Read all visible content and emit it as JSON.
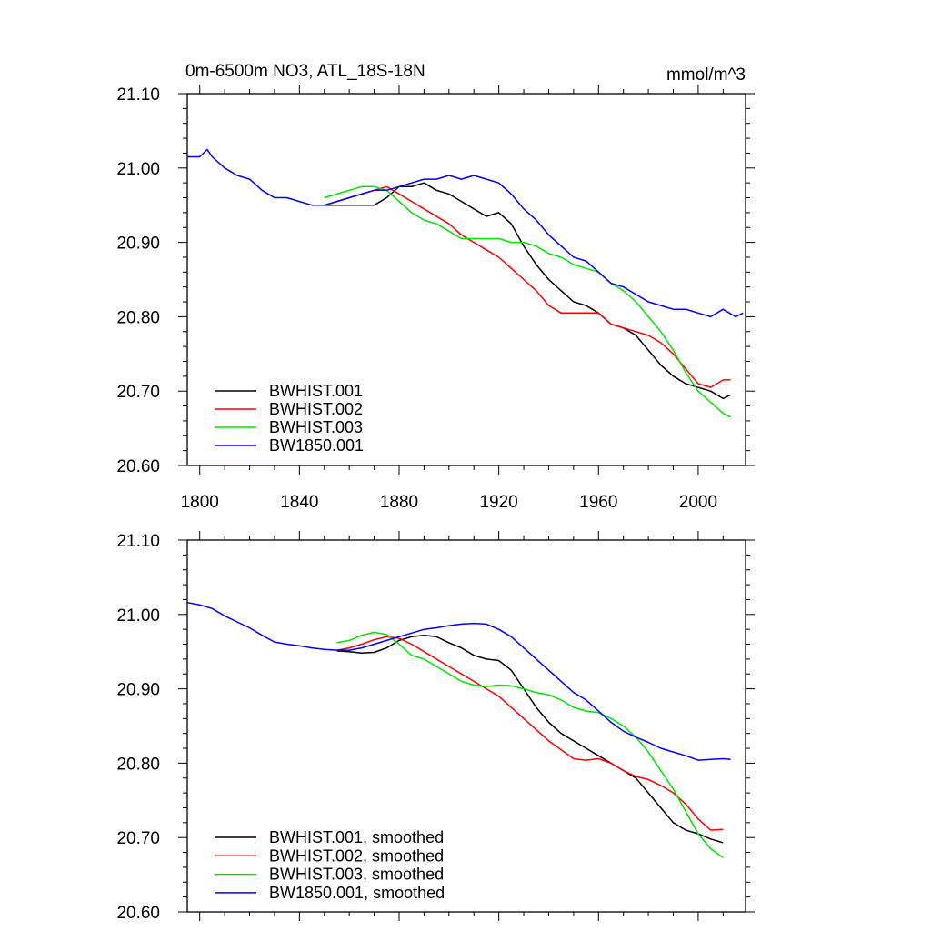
{
  "colors": {
    "BWHIST.001": "#000000",
    "BWHIST.002": "#ff0000",
    "BWHIST.003": "#00e600",
    "BW1850.001": "#0000ff"
  },
  "chart_data": [
    {
      "type": "line",
      "title": "0m-6500m NO3, ATL_18S-18N",
      "units": "mmol/m^3",
      "xlim": [
        1795,
        2019
      ],
      "ylim": [
        20.6,
        21.1
      ],
      "xticks": [
        1800,
        1840,
        1880,
        1920,
        1960,
        2000
      ],
      "xtick_labels": [
        "1800",
        "1840",
        "1880",
        "1920",
        "1960",
        "2000"
      ],
      "yticks": [
        20.6,
        20.7,
        20.8,
        20.9,
        21.0,
        21.1
      ],
      "ytick_labels": [
        "20.60",
        "20.70",
        "20.80",
        "20.90",
        "21.00",
        "21.10"
      ],
      "legend_position": "bottom-left",
      "series": [
        {
          "name": "BWHIST.001",
          "key": "BWHIST.001",
          "x": [
            1850,
            1855,
            1860,
            1865,
            1870,
            1875,
            1880,
            1885,
            1890,
            1895,
            1900,
            1905,
            1910,
            1915,
            1920,
            1925,
            1930,
            1935,
            1940,
            1945,
            1950,
            1955,
            1960,
            1965,
            1970,
            1975,
            1980,
            1985,
            1990,
            1995,
            2000,
            2005,
            2010,
            2013
          ],
          "y": [
            20.95,
            20.95,
            20.95,
            20.95,
            20.95,
            20.96,
            20.975,
            20.975,
            20.98,
            20.97,
            20.965,
            20.955,
            20.945,
            20.935,
            20.94,
            20.925,
            20.895,
            20.87,
            20.85,
            20.835,
            20.82,
            20.815,
            20.805,
            20.79,
            20.785,
            20.775,
            20.755,
            20.735,
            20.72,
            20.71,
            20.705,
            20.7,
            20.69,
            20.695
          ]
        },
        {
          "name": "BWHIST.002",
          "key": "BWHIST.002",
          "x": [
            1850,
            1855,
            1860,
            1865,
            1870,
            1875,
            1880,
            1885,
            1890,
            1895,
            1900,
            1905,
            1910,
            1915,
            1920,
            1925,
            1930,
            1935,
            1940,
            1945,
            1950,
            1955,
            1960,
            1965,
            1970,
            1975,
            1980,
            1985,
            1990,
            1995,
            2000,
            2005,
            2010,
            2013
          ],
          "y": [
            20.95,
            20.955,
            20.96,
            20.965,
            20.97,
            20.975,
            20.965,
            20.955,
            20.945,
            20.935,
            20.925,
            20.91,
            20.9,
            20.89,
            20.88,
            20.865,
            20.85,
            20.835,
            20.815,
            20.805,
            20.805,
            20.805,
            20.805,
            20.79,
            20.785,
            20.78,
            20.775,
            20.765,
            20.75,
            20.73,
            20.71,
            20.705,
            20.715,
            20.715
          ]
        },
        {
          "name": "BWHIST.003",
          "key": "BWHIST.003",
          "x": [
            1850,
            1855,
            1860,
            1865,
            1870,
            1875,
            1880,
            1885,
            1890,
            1895,
            1900,
            1905,
            1910,
            1915,
            1920,
            1925,
            1930,
            1935,
            1940,
            1945,
            1950,
            1955,
            1960,
            1965,
            1970,
            1975,
            1980,
            1985,
            1990,
            1995,
            2000,
            2005,
            2010,
            2013
          ],
          "y": [
            20.96,
            20.965,
            20.97,
            20.975,
            20.975,
            20.97,
            20.955,
            20.94,
            20.93,
            20.925,
            20.915,
            20.905,
            20.905,
            20.905,
            20.905,
            20.9,
            20.9,
            20.895,
            20.885,
            20.88,
            20.87,
            20.865,
            20.86,
            20.845,
            20.835,
            20.82,
            20.8,
            20.78,
            20.755,
            20.725,
            20.7,
            20.685,
            20.67,
            20.665
          ]
        },
        {
          "name": "BW1850.001",
          "key": "BW1850.001",
          "x": [
            1795,
            1800,
            1803,
            1805,
            1810,
            1815,
            1820,
            1825,
            1830,
            1835,
            1840,
            1845,
            1850,
            1855,
            1860,
            1865,
            1870,
            1875,
            1880,
            1885,
            1890,
            1895,
            1900,
            1905,
            1910,
            1915,
            1920,
            1925,
            1930,
            1935,
            1940,
            1945,
            1950,
            1955,
            1960,
            1965,
            1970,
            1975,
            1980,
            1985,
            1990,
            1995,
            2000,
            2005,
            2010,
            2015,
            2018
          ],
          "y": [
            21.015,
            21.015,
            21.025,
            21.015,
            21.0,
            20.99,
            20.985,
            20.97,
            20.96,
            20.96,
            20.955,
            20.95,
            20.95,
            20.955,
            20.96,
            20.965,
            20.97,
            20.97,
            20.975,
            20.98,
            20.985,
            20.985,
            20.99,
            20.985,
            20.99,
            20.985,
            20.98,
            20.965,
            20.945,
            20.93,
            20.91,
            20.895,
            20.88,
            20.875,
            20.86,
            20.845,
            20.84,
            20.83,
            20.82,
            20.815,
            20.81,
            20.81,
            20.805,
            20.8,
            20.81,
            20.8,
            20.805
          ]
        }
      ]
    },
    {
      "type": "line",
      "title": "",
      "xlim": [
        1795,
        2019
      ],
      "ylim": [
        20.6,
        21.1
      ],
      "yticks": [
        20.6,
        20.7,
        20.8,
        20.9,
        21.0,
        21.1
      ],
      "ytick_labels": [
        "20.60",
        "20.70",
        "20.80",
        "20.90",
        "21.00",
        "21.10"
      ],
      "legend_position": "bottom-left",
      "series": [
        {
          "name": "BWHIST.001, smoothed",
          "key": "BWHIST.001",
          "x": [
            1855,
            1860,
            1865,
            1870,
            1875,
            1880,
            1885,
            1890,
            1895,
            1900,
            1905,
            1910,
            1915,
            1920,
            1925,
            1930,
            1935,
            1940,
            1945,
            1950,
            1955,
            1960,
            1965,
            1970,
            1975,
            1980,
            1985,
            1990,
            1995,
            2000,
            2005,
            2010
          ],
          "y": [
            20.951,
            20.95,
            20.948,
            20.949,
            20.955,
            20.965,
            20.97,
            20.972,
            20.97,
            20.962,
            20.955,
            20.945,
            20.94,
            20.938,
            20.925,
            20.9,
            20.875,
            20.855,
            20.84,
            20.83,
            20.82,
            20.81,
            20.8,
            20.79,
            20.78,
            20.76,
            20.74,
            20.72,
            20.71,
            20.705,
            20.698,
            20.693
          ]
        },
        {
          "name": "BWHIST.002, smoothed",
          "key": "BWHIST.002",
          "x": [
            1855,
            1860,
            1865,
            1870,
            1875,
            1880,
            1885,
            1890,
            1895,
            1900,
            1905,
            1910,
            1915,
            1920,
            1925,
            1930,
            1935,
            1940,
            1945,
            1950,
            1955,
            1960,
            1965,
            1970,
            1975,
            1980,
            1985,
            1990,
            1995,
            2000,
            2005,
            2010
          ],
          "y": [
            20.952,
            20.955,
            20.96,
            20.966,
            20.97,
            20.968,
            20.96,
            20.95,
            20.94,
            20.93,
            20.92,
            20.91,
            20.9,
            20.89,
            20.875,
            20.86,
            20.845,
            20.83,
            20.818,
            20.806,
            20.804,
            20.806,
            20.8,
            20.79,
            20.782,
            20.778,
            20.77,
            20.76,
            20.745,
            20.725,
            20.71,
            20.711
          ]
        },
        {
          "name": "BWHIST.003, smoothed",
          "key": "BWHIST.003",
          "x": [
            1855,
            1860,
            1865,
            1870,
            1875,
            1880,
            1885,
            1890,
            1895,
            1900,
            1905,
            1910,
            1915,
            1920,
            1925,
            1930,
            1935,
            1940,
            1945,
            1950,
            1955,
            1960,
            1965,
            1970,
            1975,
            1980,
            1985,
            1990,
            1995,
            2000,
            2005,
            2010
          ],
          "y": [
            20.962,
            20.965,
            20.972,
            20.976,
            20.973,
            20.96,
            20.945,
            20.94,
            20.93,
            20.92,
            20.91,
            20.905,
            20.903,
            20.905,
            20.904,
            20.9,
            20.895,
            20.892,
            20.885,
            20.875,
            20.87,
            20.868,
            20.86,
            20.85,
            20.835,
            20.815,
            20.79,
            20.765,
            20.735,
            20.705,
            20.685,
            20.673
          ]
        },
        {
          "name": "BW1850.001, smoothed",
          "key": "BW1850.001",
          "x": [
            1795,
            1800,
            1805,
            1810,
            1815,
            1820,
            1825,
            1830,
            1835,
            1840,
            1845,
            1850,
            1855,
            1860,
            1865,
            1870,
            1875,
            1880,
            1885,
            1890,
            1895,
            1900,
            1905,
            1910,
            1915,
            1920,
            1925,
            1930,
            1935,
            1940,
            1945,
            1950,
            1955,
            1960,
            1965,
            1970,
            1975,
            1980,
            1985,
            1990,
            1995,
            2000,
            2005,
            2010,
            2013
          ],
          "y": [
            21.016,
            21.013,
            21.008,
            20.998,
            20.99,
            20.982,
            20.972,
            20.963,
            20.96,
            20.958,
            20.955,
            20.953,
            20.952,
            20.952,
            20.955,
            20.96,
            20.965,
            20.97,
            20.975,
            20.98,
            20.982,
            20.985,
            20.987,
            20.988,
            20.987,
            20.98,
            20.97,
            20.955,
            20.94,
            20.925,
            20.91,
            20.895,
            20.885,
            20.87,
            20.855,
            20.843,
            20.835,
            20.828,
            20.82,
            20.815,
            20.81,
            20.804,
            20.805,
            20.806,
            20.805
          ]
        }
      ]
    }
  ]
}
